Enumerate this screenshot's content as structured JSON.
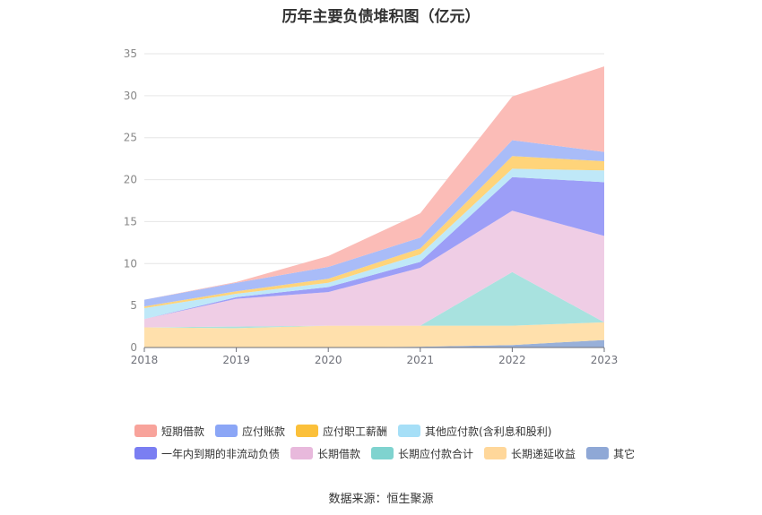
{
  "chart_data": {
    "type": "area",
    "title": "历年主要负债堆积图（亿元）",
    "source": "数据来源：恒生聚源",
    "xlabel": "",
    "ylabel": "",
    "x": [
      "2018",
      "2019",
      "2020",
      "2021",
      "2022",
      "2023"
    ],
    "ylim": [
      0,
      35
    ],
    "yticks": [
      "0",
      "5",
      "10",
      "15",
      "20",
      "25",
      "30",
      "35"
    ],
    "stacked": true,
    "grid": true,
    "legend_position": "bottom",
    "series": [
      {
        "name": "其它",
        "color": "#98b0d9",
        "values": [
          0,
          0,
          0,
          0.1,
          0.3,
          0.9
        ]
      },
      {
        "name": "长期递延收益",
        "color": "#ffe0ac",
        "values": [
          2.4,
          2.3,
          2.6,
          2.5,
          2.3,
          2.1
        ]
      },
      {
        "name": "长期应付款合计",
        "color": "#a8e2df",
        "values": [
          0,
          0.2,
          0,
          0,
          6.4,
          0
        ]
      },
      {
        "name": "长期借款",
        "color": "#efcde5",
        "values": [
          1.0,
          3.3,
          4.0,
          6.9,
          7.3,
          10.3
        ]
      },
      {
        "name": "一年内到期的非流动负债",
        "color": "#9c9ef7",
        "values": [
          0,
          0.2,
          0.6,
          0.7,
          4.0,
          6.4
        ]
      },
      {
        "name": "其他应付款(含利息和股利)",
        "color": "#bfe8f8",
        "values": [
          1.3,
          0.4,
          0.5,
          0.9,
          1.0,
          1.4
        ]
      },
      {
        "name": "应付职工薪酬",
        "color": "#ffd47a",
        "values": [
          0.2,
          0.3,
          0.5,
          0.7,
          1.5,
          1.1
        ]
      },
      {
        "name": "应付账款",
        "color": "#a9bcf8",
        "values": [
          0.8,
          1.0,
          1.4,
          1.3,
          1.9,
          1.1
        ]
      },
      {
        "name": "短期借款",
        "color": "#fbbcb7",
        "values": [
          0,
          0.1,
          1.3,
          2.9,
          5.2,
          10.2
        ]
      }
    ]
  },
  "legend": [
    [
      {
        "name": "短期借款",
        "color": "#f8a39b"
      },
      {
        "name": "应付账款",
        "color": "#8ba6f6"
      },
      {
        "name": "应付职工薪酬",
        "color": "#fbc03a"
      },
      {
        "name": "其他应付款(含利息和股利)",
        "color": "#a6dff7"
      }
    ],
    [
      {
        "name": "一年内到期的非流动负债",
        "color": "#7a7ef2"
      },
      {
        "name": "长期借款",
        "color": "#e8b9dc"
      },
      {
        "name": "长期应付款合计",
        "color": "#7fd3cf"
      },
      {
        "name": "长期递延收益",
        "color": "#ffd79a"
      },
      {
        "name": "其它",
        "color": "#8fa8d6"
      }
    ]
  ]
}
